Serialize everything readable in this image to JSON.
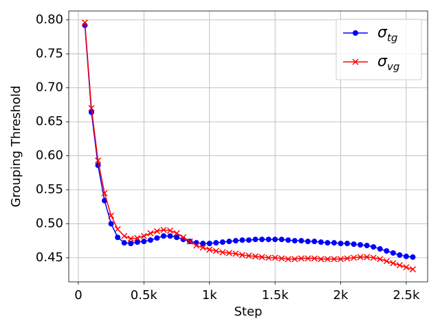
{
  "chart_data": {
    "type": "line",
    "x_label": "Step",
    "y_label": "Grouping Threshold",
    "x": [
      50,
      100,
      150,
      200,
      250,
      300,
      350,
      400,
      450,
      500,
      550,
      600,
      650,
      700,
      750,
      800,
      850,
      900,
      950,
      1000,
      1050,
      1100,
      1150,
      1200,
      1250,
      1300,
      1350,
      1400,
      1450,
      1500,
      1550,
      1600,
      1650,
      1700,
      1750,
      1800,
      1850,
      1900,
      1950,
      2000,
      2050,
      2100,
      2150,
      2200,
      2250,
      2300,
      2350,
      2400,
      2450,
      2500,
      2550
    ],
    "series": [
      {
        "name": "σtg",
        "color": "#0000ff",
        "marker": "circle",
        "values": [
          0.792,
          0.664,
          0.586,
          0.534,
          0.5,
          0.48,
          0.472,
          0.471,
          0.473,
          0.474,
          0.476,
          0.479,
          0.482,
          0.482,
          0.48,
          0.477,
          0.474,
          0.472,
          0.471,
          0.471,
          0.472,
          0.473,
          0.474,
          0.475,
          0.476,
          0.476,
          0.477,
          0.477,
          0.477,
          0.477,
          0.477,
          0.476,
          0.475,
          0.475,
          0.474,
          0.474,
          0.473,
          0.472,
          0.472,
          0.471,
          0.471,
          0.47,
          0.469,
          0.468,
          0.466,
          0.463,
          0.46,
          0.457,
          0.454,
          0.452,
          0.451
        ]
      },
      {
        "name": "σvg",
        "color": "#ff0000",
        "marker": "x",
        "values": [
          0.796,
          0.67,
          0.593,
          0.545,
          0.512,
          0.492,
          0.482,
          0.478,
          0.479,
          0.482,
          0.486,
          0.489,
          0.491,
          0.49,
          0.486,
          0.48,
          0.474,
          0.468,
          0.465,
          0.462,
          0.46,
          0.458,
          0.457,
          0.456,
          0.454,
          0.453,
          0.452,
          0.451,
          0.45,
          0.45,
          0.449,
          0.448,
          0.448,
          0.449,
          0.449,
          0.449,
          0.448,
          0.448,
          0.448,
          0.448,
          0.449,
          0.45,
          0.451,
          0.451,
          0.45,
          0.448,
          0.445,
          0.442,
          0.439,
          0.436,
          0.433
        ]
      }
    ],
    "xlim": [
      -73,
      2663
    ],
    "ylim": [
      0.4145,
      0.813
    ],
    "xticks": [
      0,
      {
        "value": 500,
        "label": "0.5k"
      },
      {
        "value": 1000,
        "label": "1k"
      },
      {
        "value": 1500,
        "label": "1.5k"
      },
      {
        "value": 2000,
        "label": "2k"
      },
      {
        "value": 2500,
        "label": "2.5k"
      }
    ],
    "yticks": [
      0.45,
      {
        "value": 0.5,
        "label": "0.50"
      },
      0.55,
      {
        "value": 0.6,
        "label": "0.60"
      },
      0.65,
      {
        "value": 0.7,
        "label": "0.70"
      },
      0.75,
      {
        "value": 0.8,
        "label": "0.80"
      }
    ],
    "grid": true,
    "legend_position": "upper right"
  }
}
